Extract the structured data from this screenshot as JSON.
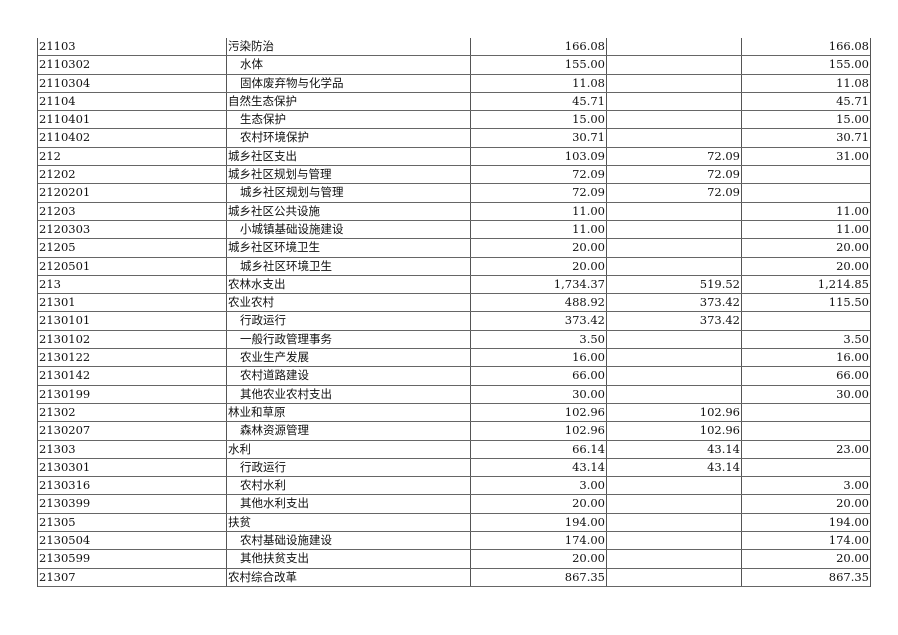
{
  "table": {
    "rows": [
      {
        "code": "21103",
        "name": "污染防治",
        "indent": false,
        "total": "166.08",
        "basic": "",
        "project": "166.08"
      },
      {
        "code": "2110302",
        "name": "水体",
        "indent": true,
        "total": "155.00",
        "basic": "",
        "project": "155.00"
      },
      {
        "code": "2110304",
        "name": "固体废弃物与化学品",
        "indent": true,
        "total": "11.08",
        "basic": "",
        "project": "11.08"
      },
      {
        "code": "21104",
        "name": "自然生态保护",
        "indent": false,
        "total": "45.71",
        "basic": "",
        "project": "45.71"
      },
      {
        "code": "2110401",
        "name": "生态保护",
        "indent": true,
        "total": "15.00",
        "basic": "",
        "project": "15.00"
      },
      {
        "code": "2110402",
        "name": "农村环境保护",
        "indent": true,
        "total": "30.71",
        "basic": "",
        "project": "30.71"
      },
      {
        "code": "212",
        "name": "城乡社区支出",
        "indent": false,
        "total": "103.09",
        "basic": "72.09",
        "project": "31.00"
      },
      {
        "code": "21202",
        "name": "城乡社区规划与管理",
        "indent": false,
        "total": "72.09",
        "basic": "72.09",
        "project": ""
      },
      {
        "code": "2120201",
        "name": "城乡社区规划与管理",
        "indent": true,
        "total": "72.09",
        "basic": "72.09",
        "project": ""
      },
      {
        "code": "21203",
        "name": "城乡社区公共设施",
        "indent": false,
        "total": "11.00",
        "basic": "",
        "project": "11.00"
      },
      {
        "code": "2120303",
        "name": "小城镇基础设施建设",
        "indent": true,
        "total": "11.00",
        "basic": "",
        "project": "11.00"
      },
      {
        "code": "21205",
        "name": "城乡社区环境卫生",
        "indent": false,
        "total": "20.00",
        "basic": "",
        "project": "20.00"
      },
      {
        "code": "2120501",
        "name": "城乡社区环境卫生",
        "indent": true,
        "total": "20.00",
        "basic": "",
        "project": "20.00"
      },
      {
        "code": "213",
        "name": "农林水支出",
        "indent": false,
        "total": "1,734.37",
        "basic": "519.52",
        "project": "1,214.85"
      },
      {
        "code": "21301",
        "name": "农业农村",
        "indent": false,
        "total": "488.92",
        "basic": "373.42",
        "project": "115.50"
      },
      {
        "code": "2130101",
        "name": "行政运行",
        "indent": true,
        "total": "373.42",
        "basic": "373.42",
        "project": ""
      },
      {
        "code": "2130102",
        "name": "一般行政管理事务",
        "indent": true,
        "total": "3.50",
        "basic": "",
        "project": "3.50"
      },
      {
        "code": "2130122",
        "name": "农业生产发展",
        "indent": true,
        "total": "16.00",
        "basic": "",
        "project": "16.00"
      },
      {
        "code": "2130142",
        "name": "农村道路建设",
        "indent": true,
        "total": "66.00",
        "basic": "",
        "project": "66.00"
      },
      {
        "code": "2130199",
        "name": "其他农业农村支出",
        "indent": true,
        "total": "30.00",
        "basic": "",
        "project": "30.00"
      },
      {
        "code": "21302",
        "name": "林业和草原",
        "indent": false,
        "total": "102.96",
        "basic": "102.96",
        "project": ""
      },
      {
        "code": "2130207",
        "name": "森林资源管理",
        "indent": true,
        "total": "102.96",
        "basic": "102.96",
        "project": ""
      },
      {
        "code": "21303",
        "name": "水利",
        "indent": false,
        "total": "66.14",
        "basic": "43.14",
        "project": "23.00"
      },
      {
        "code": "2130301",
        "name": "行政运行",
        "indent": true,
        "total": "43.14",
        "basic": "43.14",
        "project": ""
      },
      {
        "code": "2130316",
        "name": "农村水利",
        "indent": true,
        "total": "3.00",
        "basic": "",
        "project": "3.00"
      },
      {
        "code": "2130399",
        "name": "其他水利支出",
        "indent": true,
        "total": "20.00",
        "basic": "",
        "project": "20.00"
      },
      {
        "code": "21305",
        "name": "扶贫",
        "indent": false,
        "total": "194.00",
        "basic": "",
        "project": "194.00"
      },
      {
        "code": "2130504",
        "name": "农村基础设施建设",
        "indent": true,
        "total": "174.00",
        "basic": "",
        "project": "174.00"
      },
      {
        "code": "2130599",
        "name": "其他扶贫支出",
        "indent": true,
        "total": "20.00",
        "basic": "",
        "project": "20.00"
      },
      {
        "code": "21307",
        "name": "农村综合改革",
        "indent": false,
        "total": "867.35",
        "basic": "",
        "project": "867.35"
      }
    ]
  }
}
